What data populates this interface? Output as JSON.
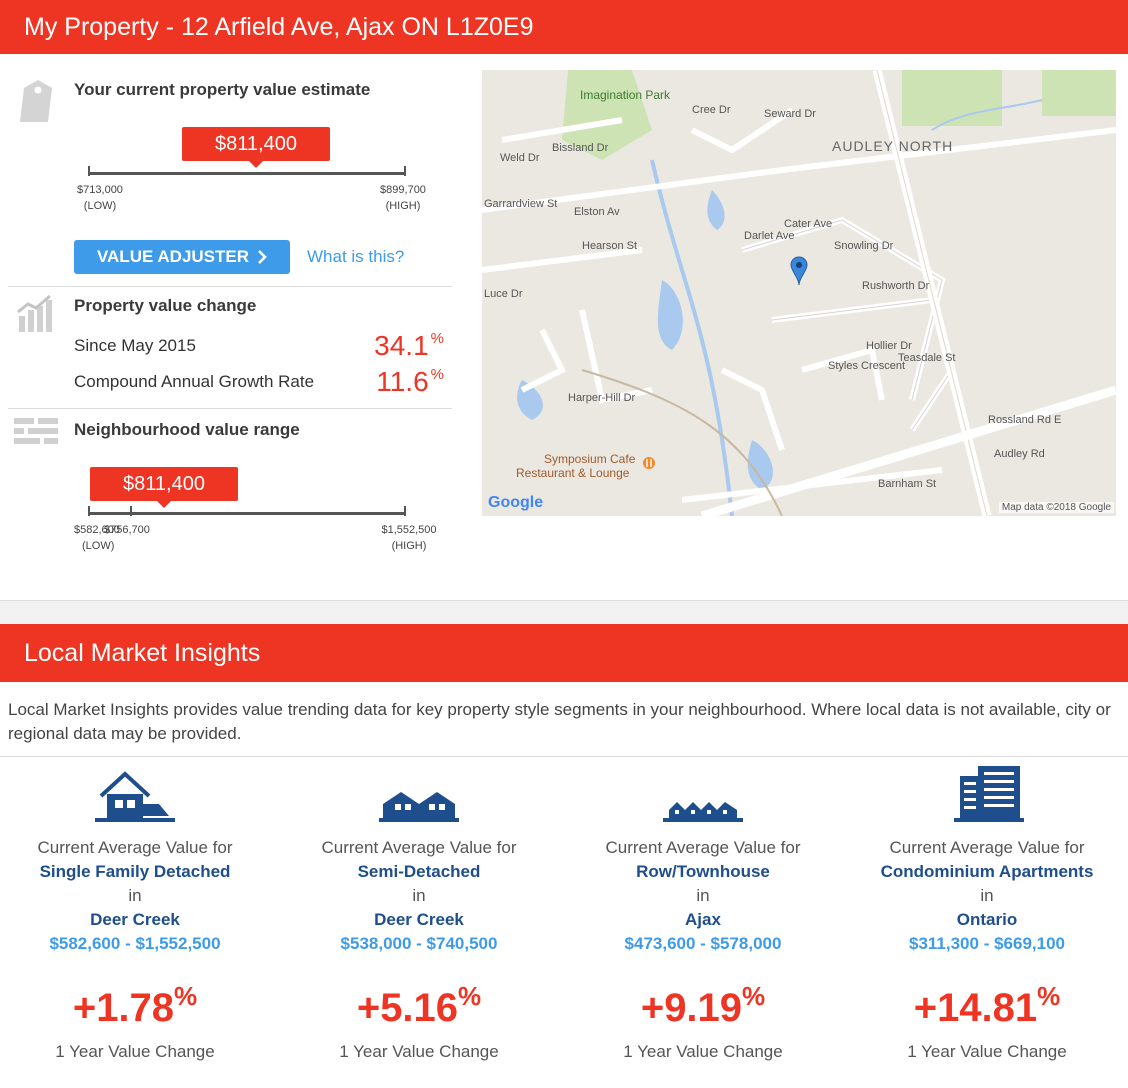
{
  "header": {
    "title": "My Property - 12 Arfield Ave, Ajax ON L1Z0E9"
  },
  "estimate": {
    "title": "Your current property value estimate",
    "value": "$811,400",
    "low_value": "$713,000",
    "low_label": "(LOW)",
    "high_value": "$899,700",
    "high_label": "(HIGH)",
    "adjuster_label": "VALUE ADJUSTER",
    "help_link": "What is this?"
  },
  "change": {
    "title": "Property value change",
    "since_label": "Since May 2015",
    "since_value": "34.1",
    "cagr_label": "Compound Annual Growth Rate",
    "cagr_value": "11.6",
    "percent_sign": "%"
  },
  "neighbourhood": {
    "title": "Neighbourhood value range",
    "value": "$811,400",
    "low_value": "$582,600",
    "low_label": "(LOW)",
    "mid_value": "$756,700",
    "high_value": "$1,552,500",
    "high_label": "(HIGH)"
  },
  "map": {
    "labels": [
      "Imagination Park",
      "AUDLEY NORTH",
      "Seward Dr",
      "Cree Dr",
      "Weld Dr",
      "Bissland Dr",
      "Garrardview St",
      "Elston Av",
      "Hearson St",
      "Darlet Ave",
      "Cater Ave",
      "Snowling Dr",
      "Rushworth Dr",
      "Teasdale St",
      "Hollier Dr",
      "Styles Crescent",
      "Rossland Rd E",
      "Audley Rd",
      "Barnham St",
      "Harper-Hill Dr",
      "Symposium Cafe",
      "Restaurant & Lounge",
      "Luce Dr"
    ],
    "brand": "Google",
    "attribution": "Map data ©2018 Google"
  },
  "insights": {
    "title": "Local Market Insights",
    "intro": "Local Market Insights provides value trending data for key property style segments in your neighbourhood. Where local data is not available, city or regional data may be provided.",
    "cards": [
      {
        "icon": "house-detached-icon",
        "prefix": "Current Average Value for",
        "type": "Single Family Detached",
        "in": "in",
        "area": "Deer Creek",
        "range": "$582,600 - $1,552,500",
        "pct": "+1.78",
        "sign": "%",
        "change": "1 Year Value Change"
      },
      {
        "icon": "house-semi-icon",
        "prefix": "Current Average Value for",
        "type": "Semi-Detached",
        "in": "in",
        "area": "Deer Creek",
        "range": "$538,000 - $740,500",
        "pct": "+5.16",
        "sign": "%",
        "change": "1 Year Value Change"
      },
      {
        "icon": "townhouse-icon",
        "prefix": "Current Average Value for",
        "type": "Row/Townhouse",
        "in": "in",
        "area": "Ajax",
        "range": "$473,600 - $578,000",
        "pct": "+9.19",
        "sign": "%",
        "change": "1 Year Value Change"
      },
      {
        "icon": "condo-building-icon",
        "prefix": "Current Average Value for",
        "type": "Condominium Apartments",
        "in": "in",
        "area": "Ontario",
        "range": "$311,300 - $669,100",
        "pct": "+14.81",
        "sign": "%",
        "change": "1 Year Value Change"
      }
    ]
  },
  "colors": {
    "accent": "#ee3524",
    "link": "#3d9be9",
    "navy": "#1f4e8c"
  }
}
